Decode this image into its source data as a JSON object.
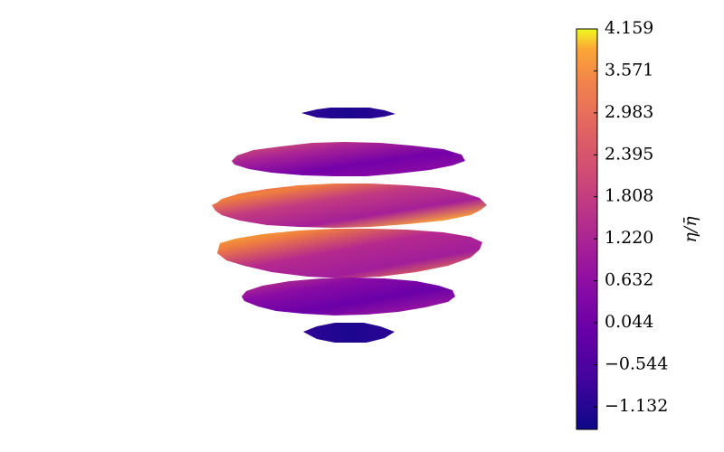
{
  "chart_data": {
    "type": "heatmap",
    "title": "",
    "xlabel": "",
    "ylabel": "",
    "grid": false,
    "axes_visible": false,
    "colormap": "plasma",
    "colorbar": {
      "label": "η/η̄",
      "vmin": -1.45,
      "vmax": 4.159,
      "ticks": [
        4.159,
        3.571,
        2.983,
        2.395,
        1.808,
        1.22,
        0.632,
        0.044,
        -0.544,
        -1.132
      ],
      "tick_labels": [
        "4.159",
        "3.571",
        "2.983",
        "2.395",
        "1.808",
        "1.220",
        "0.632",
        "0.044",
        "−0.544",
        "−1.132"
      ],
      "placement": "right"
    },
    "bands": [
      {
        "id": "band-1",
        "latitude_deg": 72,
        "min": -1.3,
        "max": -1.0
      },
      {
        "id": "band-2",
        "latitude_deg": 45,
        "min": -0.5,
        "max": 2.4
      },
      {
        "id": "band-3",
        "latitude_deg": 15,
        "min": 0.6,
        "max": 4.159
      },
      {
        "id": "band-4",
        "latitude_deg": -15,
        "min": 0.6,
        "max": 4.159
      },
      {
        "id": "band-5",
        "latitude_deg": -45,
        "min": -0.5,
        "max": 2.4
      },
      {
        "id": "band-6",
        "latitude_deg": -72,
        "min": -1.3,
        "max": -1.0
      }
    ]
  }
}
